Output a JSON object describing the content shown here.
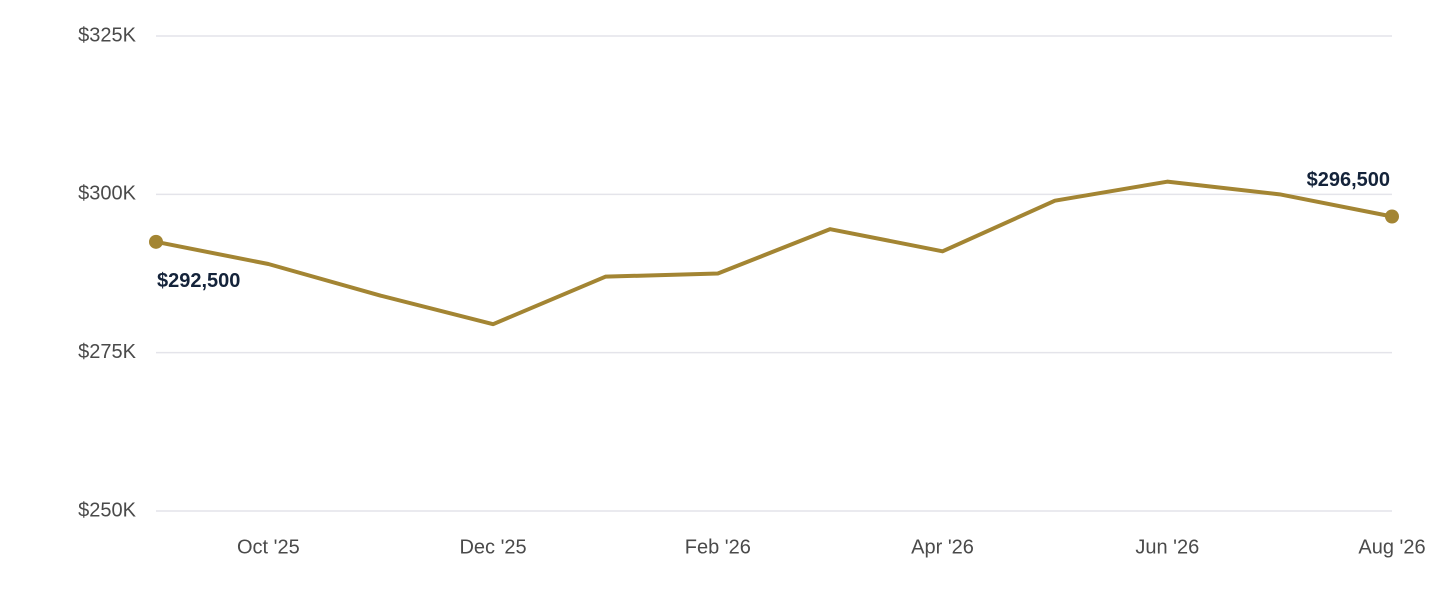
{
  "chart_data": {
    "type": "line",
    "categories": [
      null,
      "Oct '25",
      null,
      "Dec '25",
      null,
      "Feb '26",
      null,
      "Apr '26",
      null,
      "Jun '26",
      null,
      "Aug '26"
    ],
    "series": [
      {
        "color": "#a38533",
        "values": [
          292500,
          289000,
          284000,
          279500,
          287000,
          287500,
          294500,
          291000,
          299000,
          302000,
          300000,
          296500
        ],
        "value_labels": [
          "$292,500",
          null,
          null,
          null,
          null,
          null,
          null,
          null,
          null,
          null,
          null,
          "$296,500"
        ]
      }
    ],
    "ylim": [
      250000,
      325000
    ],
    "yticks": [
      {
        "value": 250000,
        "label": "$250K"
      },
      {
        "value": 275000,
        "label": "$275K"
      },
      {
        "value": 300000,
        "label": "$300K"
      },
      {
        "value": 325000,
        "label": "$325K"
      }
    ],
    "grid": true
  }
}
